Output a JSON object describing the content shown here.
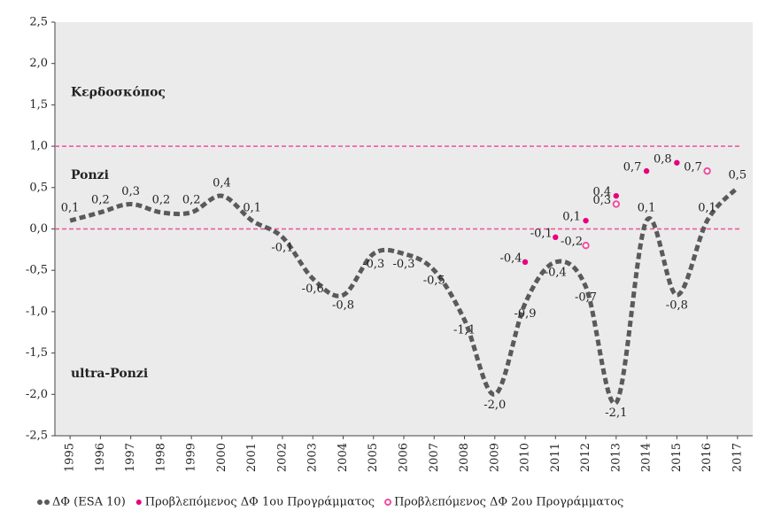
{
  "chart_data": {
    "type": "line",
    "categories": [
      "1995",
      "1996",
      "1997",
      "1998",
      "1999",
      "2000",
      "2001",
      "2002",
      "2003",
      "2004",
      "2005",
      "2006",
      "2007",
      "2008",
      "2009",
      "2010",
      "2011",
      "2012",
      "2013",
      "2014",
      "2015",
      "2016",
      "2017"
    ],
    "series": [
      {
        "name": "ΔΦ (ESA 10)",
        "color": "#5a5a5a",
        "style": "dashed-line",
        "values": [
          0.1,
          0.2,
          0.3,
          0.2,
          0.2,
          0.4,
          0.1,
          -0.1,
          -0.6,
          -0.8,
          -0.3,
          -0.3,
          -0.5,
          -1.1,
          -2.0,
          -0.9,
          -0.4,
          -0.7,
          -2.1,
          0.1,
          -0.8,
          0.1,
          0.5
        ],
        "value_labels": [
          "0,1",
          "0,2",
          "0,3",
          "0,2",
          "0,2",
          "0,4",
          "0,1",
          "-0,1",
          "-0,6",
          "-0,8",
          "-0,3",
          "-0,3",
          "-0,5",
          "-1,1",
          "-2,0",
          "-0,9",
          "-0,4",
          "-0,7",
          "-2,1",
          "0,1",
          "-0,8",
          "0,1",
          "0,5"
        ]
      },
      {
        "name": "Προβλεπόμενος ΔΦ 1ου Προγράμματος",
        "color": "#e6007e",
        "style": "dot",
        "values": [
          null,
          null,
          null,
          null,
          null,
          null,
          null,
          null,
          null,
          null,
          null,
          null,
          null,
          null,
          null,
          -0.4,
          -0.1,
          0.1,
          0.4,
          0.7,
          0.8,
          null,
          null
        ],
        "value_labels": [
          null,
          null,
          null,
          null,
          null,
          null,
          null,
          null,
          null,
          null,
          null,
          null,
          null,
          null,
          null,
          "-0,4",
          "-0,1",
          "0,1",
          "0,4",
          "0,7",
          "0,8",
          null,
          null
        ]
      },
      {
        "name": "Προβλεπόμενος ΔΦ 2ου Προγράμματος",
        "color": "#ee4fa0",
        "style": "ring",
        "values": [
          null,
          null,
          null,
          null,
          null,
          null,
          null,
          null,
          null,
          null,
          null,
          null,
          null,
          null,
          null,
          null,
          null,
          -0.2,
          0.3,
          null,
          null,
          0.7,
          null
        ],
        "value_labels": [
          null,
          null,
          null,
          null,
          null,
          null,
          null,
          null,
          null,
          null,
          null,
          null,
          null,
          null,
          null,
          null,
          null,
          "-0,2",
          "0,3",
          null,
          null,
          "0,7",
          null
        ]
      }
    ],
    "ylim": [
      -2.5,
      2.5
    ],
    "yticks": [
      {
        "value": 2.5,
        "label": "2,5"
      },
      {
        "value": 2.0,
        "label": "2,0"
      },
      {
        "value": 1.5,
        "label": "1,5"
      },
      {
        "value": 1.0,
        "label": "1,0"
      },
      {
        "value": 0.5,
        "label": "0,5"
      },
      {
        "value": 0,
        "label": "0,0"
      },
      {
        "value": -0.5,
        "label": "-0,5"
      },
      {
        "value": -1.0,
        "label": "-1,0"
      },
      {
        "value": -1.5,
        "label": "-1,5"
      },
      {
        "value": -2.0,
        "label": "-2,0"
      },
      {
        "value": -2.5,
        "label": "-2,5"
      }
    ],
    "reference_lines": [
      1.0,
      0
    ],
    "reference_color": "#f0509c",
    "annotations": [
      {
        "text": "Κερδοσκόπος",
        "y": 1.65
      },
      {
        "text": "Ponzi",
        "y": 0.65
      },
      {
        "text": "ultra-Ponzi",
        "y": -1.75
      }
    ],
    "legend": "bottom",
    "grid": false
  }
}
